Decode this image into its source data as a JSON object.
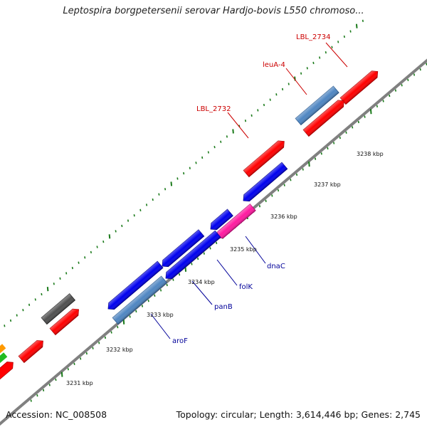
{
  "title": "Leptospira borgpetersenii serovar Hardjo-bovis L550 chromoso...",
  "footer": {
    "accession": "Accession: NC_008508",
    "summary": "Topology: circular; Length: 3,614,446 bp; Genes: 2,745"
  },
  "colors": {
    "red": "#ff0000",
    "blue": "#0000ee",
    "steelblue": "#4f86c2",
    "magenta": "#ff1aa0",
    "gray": "#505050",
    "backbone": "#808080",
    "tick": "#1a7a1a",
    "label_red": "#cc0000",
    "label_blue": "#000099"
  },
  "tick_labels": [
    "3231 kbp",
    "3232 kbp",
    "3233 kbp",
    "3234 kbp",
    "3235 kbp",
    "3236 kbp",
    "3237 kbp",
    "3238 kbp"
  ],
  "gene_labels": [
    {
      "text": "LBL_2734",
      "color": "red"
    },
    {
      "text": "leuA-4",
      "color": "red"
    },
    {
      "text": "LBL_2732",
      "color": "red"
    },
    {
      "text": "dnaC",
      "color": "blue"
    },
    {
      "text": "folK",
      "color": "blue"
    },
    {
      "text": "panB",
      "color": "blue"
    },
    {
      "text": "aroF",
      "color": "blue"
    }
  ]
}
